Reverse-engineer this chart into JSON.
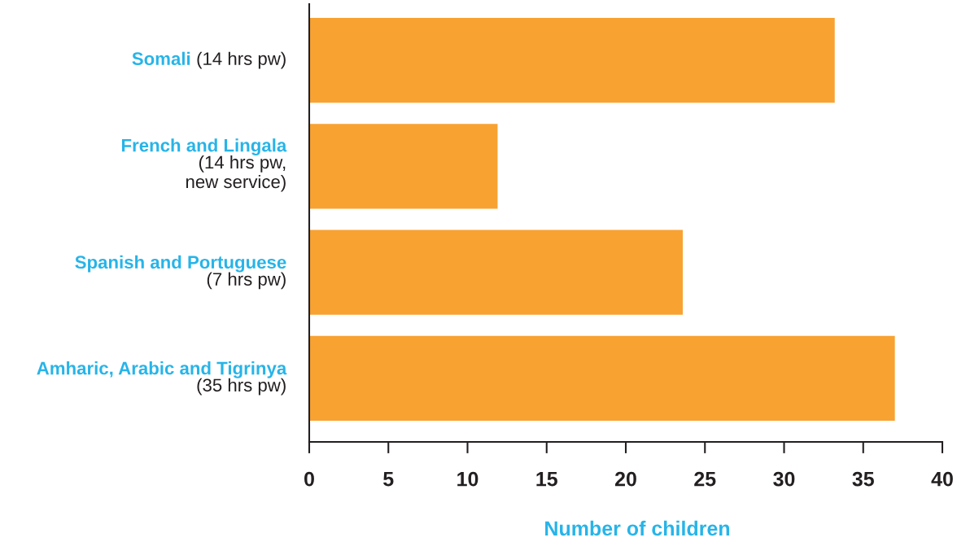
{
  "chart_data": {
    "type": "bar",
    "orientation": "horizontal",
    "categories": [
      "Somali (14 hrs pw)",
      "French and Lingala\n(14 hrs pw,\nnew service)",
      "Spanish and Portuguese\n(7 hrs pw)",
      "Amharic, Arabic and Tigrinya\n(35 hrs pw)"
    ],
    "values": [
      33.2,
      11.9,
      23.6,
      37.0
    ],
    "color": "#f8a232",
    "xlim": [
      0,
      40
    ],
    "xticks": [
      0,
      5,
      10,
      15,
      20,
      25,
      30,
      35,
      40
    ],
    "xlabel": "Number of children"
  }
}
